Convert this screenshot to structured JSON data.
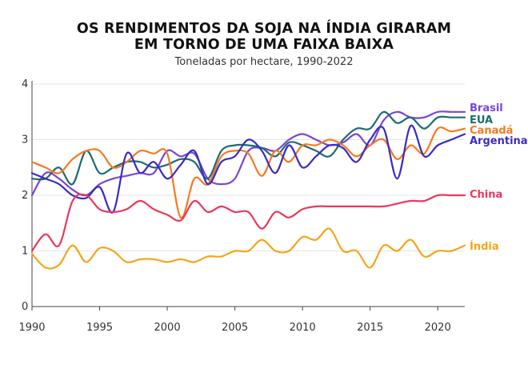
{
  "chart_data": {
    "type": "line",
    "title_line1": "OS RENDIMENTOS DA SOJA NA ÍNDIA GIRARAM",
    "title_line2": "EM TORNO DE UMA FAIXA BAIXA",
    "subtitle": "Toneladas por hectare, 1990-2022",
    "xlabel": "",
    "ylabel": "",
    "xlim": [
      1990,
      2022
    ],
    "ylim": [
      0,
      4
    ],
    "x_ticks": [
      1990,
      1995,
      2000,
      2005,
      2010,
      2015,
      2020
    ],
    "y_ticks": [
      0,
      1,
      2,
      3,
      4
    ],
    "grid": "horizontal",
    "legend_placement": "right",
    "x": [
      1990,
      1991,
      1992,
      1993,
      1994,
      1995,
      1996,
      1997,
      1998,
      1999,
      2000,
      2001,
      2002,
      2003,
      2004,
      2005,
      2006,
      2007,
      2008,
      2009,
      2010,
      2011,
      2012,
      2013,
      2014,
      2015,
      2016,
      2017,
      2018,
      2019,
      2020,
      2021,
      2022
    ],
    "series": [
      {
        "name": "Brasil",
        "color": "#7b45d4",
        "values": [
          2.0,
          2.4,
          2.3,
          2.1,
          2.0,
          2.2,
          2.3,
          2.35,
          2.4,
          2.4,
          2.8,
          2.7,
          2.75,
          2.3,
          2.2,
          2.3,
          2.8,
          2.85,
          2.8,
          3.0,
          3.1,
          3.0,
          2.9,
          2.95,
          3.1,
          2.9,
          3.35,
          3.5,
          3.4,
          3.4,
          3.5,
          3.5,
          3.5
        ]
      },
      {
        "name": "EUA",
        "color": "#1f6b6f",
        "values": [
          2.3,
          2.3,
          2.5,
          2.2,
          2.8,
          2.4,
          2.5,
          2.6,
          2.6,
          2.5,
          2.55,
          2.65,
          2.6,
          2.3,
          2.8,
          2.9,
          2.9,
          2.85,
          2.7,
          2.95,
          2.9,
          2.8,
          2.7,
          3.0,
          3.2,
          3.2,
          3.5,
          3.3,
          3.4,
          3.2,
          3.4,
          3.4,
          3.4
        ]
      },
      {
        "name": "Canadá",
        "color": "#f47b20",
        "values": [
          2.6,
          2.5,
          2.4,
          2.65,
          2.8,
          2.8,
          2.5,
          2.6,
          2.8,
          2.75,
          2.75,
          1.6,
          2.3,
          2.2,
          2.7,
          2.8,
          2.75,
          2.35,
          2.8,
          2.6,
          2.9,
          2.9,
          3.0,
          2.9,
          2.7,
          2.9,
          3.0,
          2.65,
          2.9,
          2.75,
          3.2,
          3.15,
          3.2
        ]
      },
      {
        "name": "Argentina",
        "color": "#3a2bc4",
        "values": [
          2.4,
          2.3,
          2.2,
          2.0,
          1.95,
          2.15,
          1.7,
          2.75,
          2.4,
          2.6,
          2.3,
          2.55,
          2.8,
          2.2,
          2.6,
          2.7,
          3.0,
          2.8,
          2.4,
          2.9,
          2.5,
          2.7,
          2.9,
          2.85,
          2.6,
          3.0,
          3.2,
          2.3,
          3.25,
          2.7,
          2.9,
          3.0,
          3.1
        ]
      },
      {
        "name": "China",
        "color": "#e8395b",
        "values": [
          1.0,
          1.3,
          1.1,
          1.9,
          2.0,
          1.75,
          1.7,
          1.75,
          1.9,
          1.75,
          1.65,
          1.55,
          1.9,
          1.7,
          1.8,
          1.7,
          1.7,
          1.4,
          1.7,
          1.6,
          1.75,
          1.8,
          1.8,
          1.8,
          1.8,
          1.8,
          1.8,
          1.85,
          1.9,
          1.9,
          2.0,
          2.0,
          2.0
        ]
      },
      {
        "name": "Índia",
        "color": "#f5a51a",
        "values": [
          0.95,
          0.7,
          0.75,
          1.1,
          0.8,
          1.05,
          1.0,
          0.8,
          0.85,
          0.85,
          0.8,
          0.85,
          0.8,
          0.9,
          0.9,
          1.0,
          1.0,
          1.2,
          1.0,
          1.0,
          1.25,
          1.2,
          1.4,
          1.0,
          1.0,
          0.7,
          1.1,
          1.0,
          1.2,
          0.9,
          1.0,
          1.0,
          1.1
        ]
      }
    ]
  }
}
